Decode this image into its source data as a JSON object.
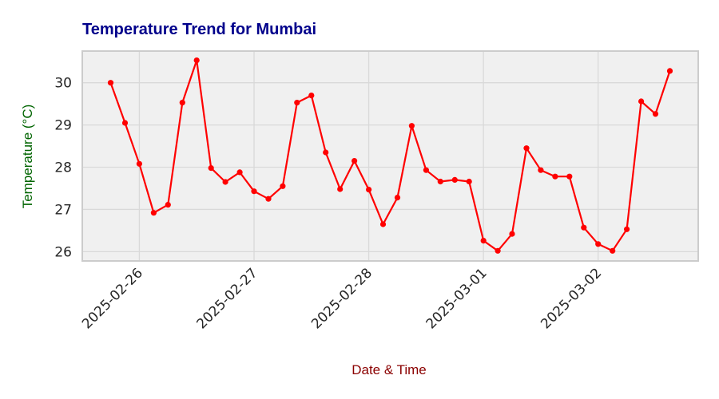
{
  "chart_data": {
    "type": "line",
    "title": "Temperature Trend for Mumbai",
    "xlabel": "Date & Time",
    "ylabel": "Temperature (°C)",
    "x_start": "2025-02-25T18:00",
    "x_step_hours": 3,
    "x_ticks": [
      "2025-02-26",
      "2025-02-27",
      "2025-02-28",
      "2025-03-01",
      "2025-03-02"
    ],
    "y_ticks": [
      26,
      27,
      28,
      29,
      30
    ],
    "ylim": [
      25.78,
      30.75
    ],
    "grid": true,
    "series": [
      {
        "values": [
          30.0,
          29.05,
          28.08,
          26.92,
          27.11,
          29.53,
          30.53,
          27.98,
          27.65,
          27.88,
          27.43,
          27.25,
          27.55,
          29.53,
          29.7,
          28.35,
          27.48,
          28.15,
          27.47,
          26.65,
          27.28,
          28.98,
          27.93,
          27.66,
          27.7,
          27.66,
          26.26,
          26.02,
          26.42,
          28.45,
          27.93,
          27.78,
          27.78,
          26.57,
          26.18,
          26.02,
          26.53,
          29.56,
          29.26,
          30.28
        ],
        "color": "#ff0000"
      }
    ],
    "colors": {
      "title": "#00008b",
      "xlabel": "#8b0000",
      "ylabel": "#006400",
      "plot_bg": "#f0f0f0",
      "grid": "#d9d9d9",
      "frame": "#cccccc"
    }
  }
}
